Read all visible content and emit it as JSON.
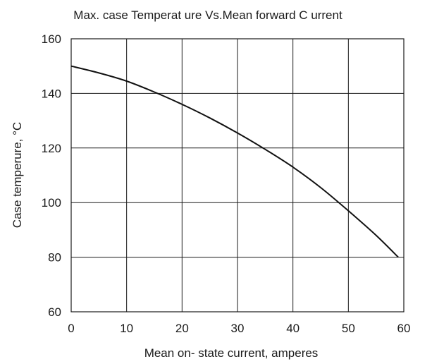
{
  "chart_data": {
    "type": "line",
    "title": "Max. case Temperat ure Vs.Mean forward C urrent",
    "xlabel": "Mean on- state current, amperes",
    "ylabel": "Case temperure, °C",
    "xlim": [
      0,
      60
    ],
    "ylim": [
      60,
      160
    ],
    "xticks": [
      "0",
      "10",
      "20",
      "30",
      "40",
      "50",
      "60"
    ],
    "yticks": [
      "60",
      "80",
      "100",
      "120",
      "140",
      "160"
    ],
    "grid": true,
    "series": [
      {
        "x": [
          0,
          5,
          10,
          15,
          20,
          25,
          30,
          35,
          40,
          45,
          50,
          55,
          59
        ],
        "values": [
          150,
          147.5,
          144.5,
          140.5,
          136,
          131,
          125.5,
          119.5,
          113,
          105.5,
          97,
          88,
          80
        ]
      }
    ]
  },
  "colors": {
    "line": "#111111",
    "grid": "#1a1a1a",
    "background": "#ffffff"
  }
}
